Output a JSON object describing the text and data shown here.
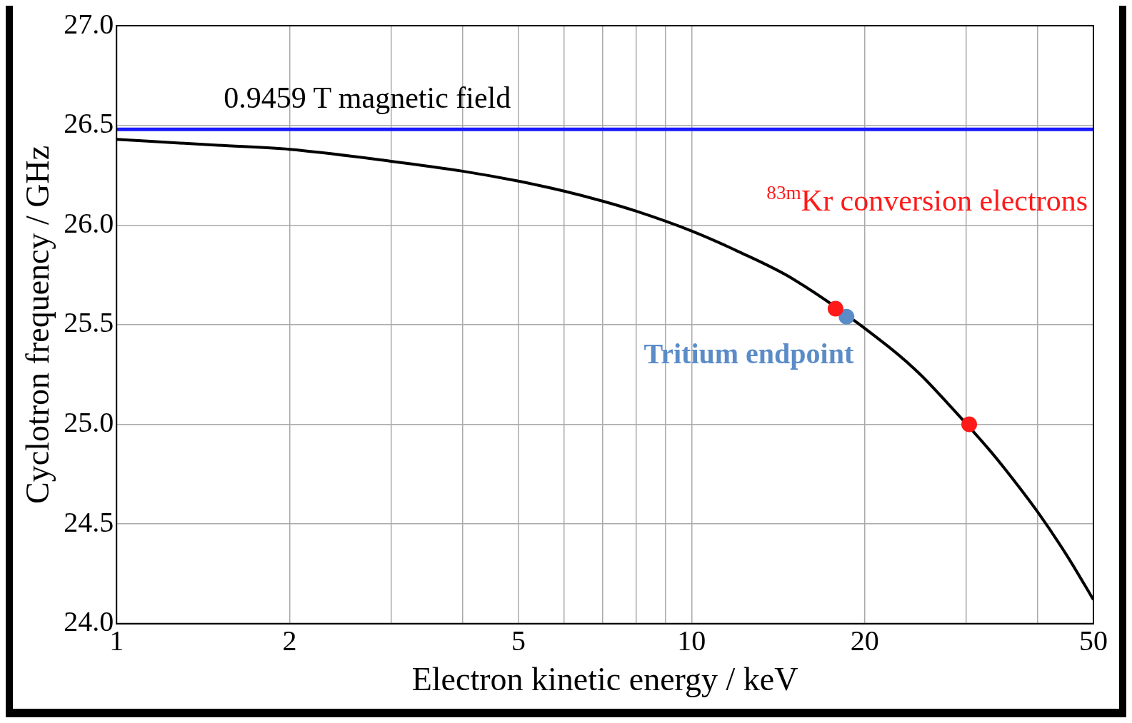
{
  "chart_data": {
    "type": "line",
    "xlabel": "Electron kinetic energy / keV",
    "ylabel": "Cyclotron frequency / GHz",
    "log": "x",
    "grid": true,
    "legend": false,
    "xlim": [
      1,
      50
    ],
    "ylim": [
      24,
      27
    ],
    "xticks": [
      1,
      2,
      {
        "value": 3,
        "label": null
      },
      {
        "value": 4,
        "label": null
      },
      5,
      {
        "value": 6,
        "label": null
      },
      {
        "value": 7,
        "label": null
      },
      {
        "value": 8,
        "label": null
      },
      {
        "value": 9,
        "label": null
      },
      10,
      20,
      {
        "value": 30,
        "label": null
      },
      {
        "value": 40,
        "label": null
      },
      50
    ],
    "yticks": [
      {
        "value": 24,
        "label": "24.0"
      },
      {
        "value": 24.5,
        "label": "24.5"
      },
      {
        "value": 25,
        "label": "25.0"
      },
      {
        "value": 25.5,
        "label": "25.5"
      },
      {
        "value": 26,
        "label": "26.0"
      },
      {
        "value": 26.5,
        "label": "26.5"
      },
      {
        "value": 27,
        "label": "27.0"
      }
    ],
    "ref_lines": [
      {
        "axis": "y",
        "value": 26.48,
        "label": "0.9459 T magnetic field",
        "color": "#1a1aff"
      }
    ],
    "series": [
      {
        "color": "#000000",
        "marker": "none",
        "x": [
          1,
          1.5,
          2,
          3,
          4,
          5,
          6,
          7,
          8,
          10,
          12,
          15,
          22,
          25,
          28,
          33,
          35,
          40,
          45,
          50
        ],
        "values": [
          26.43,
          26.4,
          26.38,
          26.32,
          26.27,
          26.22,
          26.17,
          26.12,
          26.07,
          25.97,
          25.87,
          25.73,
          25.39,
          25.25,
          25.1,
          24.87,
          24.78,
          24.56,
          24.34,
          24.12
        ]
      },
      {
        "type": "scatter",
        "marker": "circle",
        "name": "$^{83m}$Kr conversion electrons",
        "color": "#ff1a1a",
        "x": [
          17.8,
          30.4
        ],
        "values": [
          25.58,
          25.0
        ]
      },
      {
        "type": "scatter",
        "marker": "circle",
        "name": "Tritium endpoint",
        "color": "#5b8cc8",
        "x": [
          18.6
        ],
        "values": [
          25.54
        ]
      }
    ]
  }
}
